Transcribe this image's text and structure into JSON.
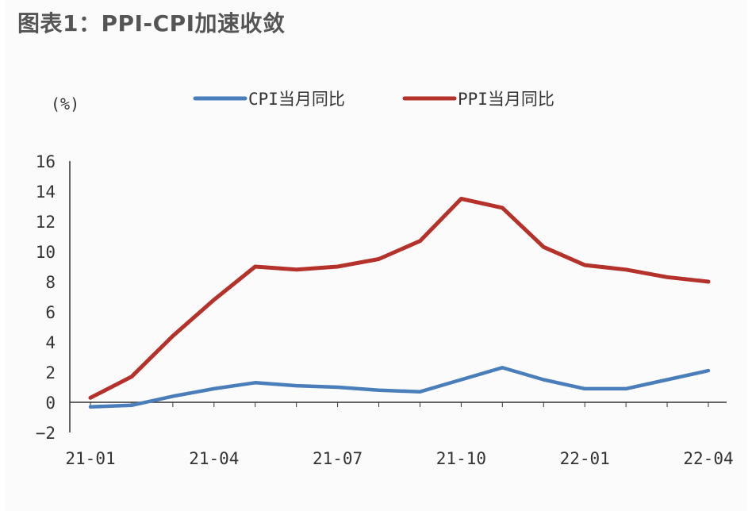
{
  "title": "图表1：PPI-CPI加速收敛",
  "unit_label": "(%)",
  "colors": {
    "cpi": "#4a7ebb",
    "ppi": "#b5322b",
    "axis": "#333333",
    "text": "#333333"
  },
  "chart_data": {
    "type": "line",
    "title": "图表1：PPI-CPI加速收敛",
    "xlabel": "",
    "ylabel": "(%)",
    "ylim": [
      -2,
      16
    ],
    "yticks": [
      -2,
      0,
      2,
      4,
      6,
      8,
      10,
      12,
      14,
      16
    ],
    "x": [
      "21-01",
      "21-02",
      "21-03",
      "21-04",
      "21-05",
      "21-06",
      "21-07",
      "21-08",
      "21-09",
      "21-10",
      "21-11",
      "21-12",
      "22-01",
      "22-02",
      "22-03",
      "22-04"
    ],
    "xtick_labels": [
      "21-01",
      "21-04",
      "21-07",
      "21-10",
      "22-01",
      "22-04"
    ],
    "grid": false,
    "legend_position": "top",
    "series": [
      {
        "name": "CPI当月同比",
        "color": "#4a7ebb",
        "values": [
          -0.3,
          -0.2,
          0.4,
          0.9,
          1.3,
          1.1,
          1.0,
          0.8,
          0.7,
          1.5,
          2.3,
          1.5,
          0.9,
          0.9,
          1.5,
          2.1
        ]
      },
      {
        "name": "PPI当月同比",
        "color": "#b5322b",
        "values": [
          0.3,
          1.7,
          4.4,
          6.8,
          9.0,
          8.8,
          9.0,
          9.5,
          10.7,
          13.5,
          12.9,
          10.3,
          9.1,
          8.8,
          8.3,
          8.0
        ]
      }
    ]
  }
}
